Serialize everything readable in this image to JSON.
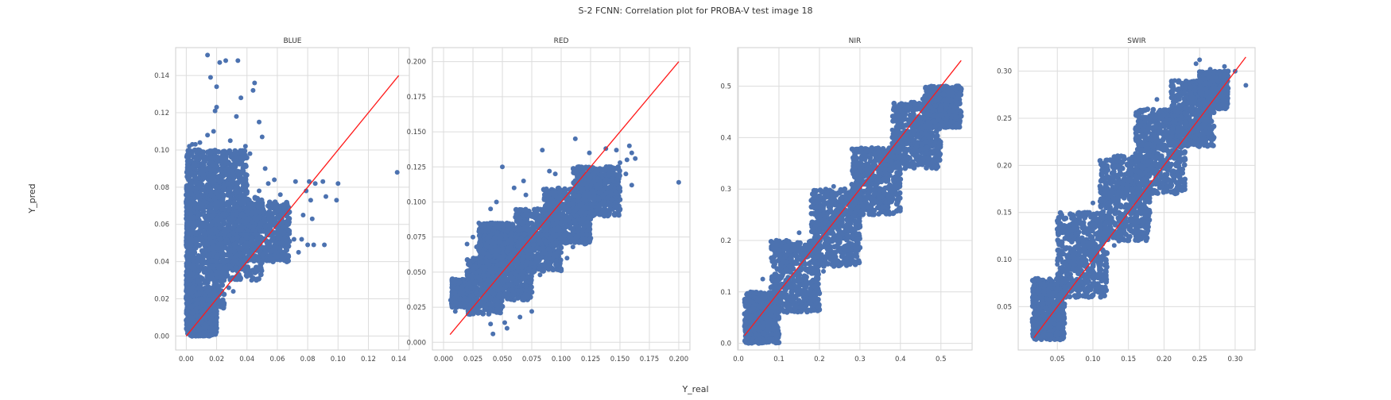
{
  "figure": {
    "title": "S-2 FCNN: Correlation plot for PROBA-V test image 18",
    "xlabel": "Y_real",
    "ylabel": "Y_pred"
  },
  "colors": {
    "points": "#4c72b0",
    "identity_line": "#ff1a1a",
    "grid": "#dcdcdc",
    "frame": "#cfcfcf"
  },
  "chart_data": [
    {
      "type": "scatter",
      "title": "BLUE",
      "xlim": [
        -0.007,
        0.147
      ],
      "ylim": [
        -0.0075,
        0.155
      ],
      "xticks": [
        0.0,
        0.02,
        0.04,
        0.06,
        0.08,
        0.1,
        0.12,
        0.14
      ],
      "xtick_labels": [
        "0.00",
        "0.02",
        "0.04",
        "0.06",
        "0.08",
        "0.10",
        "0.12",
        "0.14"
      ],
      "yticks": [
        0.0,
        0.02,
        0.04,
        0.06,
        0.08,
        0.1,
        0.12,
        0.14
      ],
      "ytick_labels": [
        "0.00",
        "0.02",
        "0.04",
        "0.06",
        "0.08",
        "0.10",
        "0.12",
        "0.14"
      ],
      "grid": true,
      "identity_line": [
        [
          0.0,
          0.0
        ],
        [
          0.14,
          0.14
        ]
      ],
      "clusters": [
        {
          "x": [
            0.0,
            0.005
          ],
          "y": [
            0.02,
            0.08
          ]
        },
        {
          "x": [
            0.002,
            0.025
          ],
          "y": [
            0.015,
            0.075
          ]
        },
        {
          "x": [
            0.015,
            0.05
          ],
          "y": [
            0.03,
            0.075
          ]
        },
        {
          "x": [
            0.03,
            0.068
          ],
          "y": [
            0.04,
            0.072
          ]
        },
        {
          "x": [
            0.0,
            0.02
          ],
          "y": [
            0.0,
            0.02
          ]
        },
        {
          "x": [
            0.0,
            0.04
          ],
          "y": [
            0.075,
            0.1
          ]
        }
      ],
      "points": [
        {
          "x": 0.014,
          "y": 0.151
        },
        {
          "x": 0.022,
          "y": 0.147
        },
        {
          "x": 0.026,
          "y": 0.148
        },
        {
          "x": 0.034,
          "y": 0.148
        },
        {
          "x": 0.016,
          "y": 0.139
        },
        {
          "x": 0.02,
          "y": 0.134
        },
        {
          "x": 0.045,
          "y": 0.136
        },
        {
          "x": 0.044,
          "y": 0.132
        },
        {
          "x": 0.036,
          "y": 0.128
        },
        {
          "x": 0.02,
          "y": 0.123
        },
        {
          "x": 0.019,
          "y": 0.121
        },
        {
          "x": 0.033,
          "y": 0.118
        },
        {
          "x": 0.048,
          "y": 0.115
        },
        {
          "x": 0.05,
          "y": 0.107
        },
        {
          "x": 0.009,
          "y": 0.104
        },
        {
          "x": 0.004,
          "y": 0.103
        },
        {
          "x": 0.006,
          "y": 0.103
        },
        {
          "x": 0.002,
          "y": 0.102
        },
        {
          "x": 0.018,
          "y": 0.11
        },
        {
          "x": 0.014,
          "y": 0.108
        },
        {
          "x": 0.029,
          "y": 0.105
        },
        {
          "x": 0.039,
          "y": 0.102
        },
        {
          "x": 0.001,
          "y": 0.092
        },
        {
          "x": 0.008,
          "y": 0.085
        },
        {
          "x": 0.042,
          "y": 0.098
        },
        {
          "x": 0.052,
          "y": 0.09
        },
        {
          "x": 0.058,
          "y": 0.084
        },
        {
          "x": 0.072,
          "y": 0.083
        },
        {
          "x": 0.079,
          "y": 0.078
        },
        {
          "x": 0.081,
          "y": 0.083
        },
        {
          "x": 0.085,
          "y": 0.082
        },
        {
          "x": 0.09,
          "y": 0.083
        },
        {
          "x": 0.1,
          "y": 0.082
        },
        {
          "x": 0.082,
          "y": 0.073
        },
        {
          "x": 0.092,
          "y": 0.075
        },
        {
          "x": 0.099,
          "y": 0.073
        },
        {
          "x": 0.077,
          "y": 0.065
        },
        {
          "x": 0.083,
          "y": 0.063
        },
        {
          "x": 0.068,
          "y": 0.055
        },
        {
          "x": 0.071,
          "y": 0.052
        },
        {
          "x": 0.076,
          "y": 0.052
        },
        {
          "x": 0.08,
          "y": 0.049
        },
        {
          "x": 0.084,
          "y": 0.049
        },
        {
          "x": 0.091,
          "y": 0.049
        },
        {
          "x": 0.074,
          "y": 0.045
        },
        {
          "x": 0.062,
          "y": 0.046
        },
        {
          "x": 0.064,
          "y": 0.044
        },
        {
          "x": 0.058,
          "y": 0.047
        },
        {
          "x": 0.139,
          "y": 0.088
        },
        {
          "x": 0.04,
          "y": 0.032
        },
        {
          "x": 0.043,
          "y": 0.03
        },
        {
          "x": 0.028,
          "y": 0.026
        },
        {
          "x": 0.031,
          "y": 0.024
        },
        {
          "x": 0.02,
          "y": 0.022
        },
        {
          "x": 0.013,
          "y": 0.01
        },
        {
          "x": 0.008,
          "y": 0.006
        },
        {
          "x": 0.01,
          "y": 0.012
        },
        {
          "x": 0.054,
          "y": 0.082
        },
        {
          "x": 0.048,
          "y": 0.078
        },
        {
          "x": 0.062,
          "y": 0.076
        }
      ]
    },
    {
      "type": "scatter",
      "title": "RED",
      "xlim": [
        -0.0095,
        0.2095
      ],
      "ylim": [
        -0.0055,
        0.21
      ],
      "xticks": [
        0.0,
        0.025,
        0.05,
        0.075,
        0.1,
        0.125,
        0.15,
        0.175,
        0.2
      ],
      "xtick_labels": [
        "0.000",
        "0.025",
        "0.050",
        "0.075",
        "0.100",
        "0.125",
        "0.150",
        "0.175",
        "0.200"
      ],
      "yticks": [
        0.0,
        0.025,
        0.05,
        0.075,
        0.1,
        0.125,
        0.15,
        0.175,
        0.2
      ],
      "ytick_labels": [
        "0.000",
        "0.025",
        "0.050",
        "0.075",
        "0.100",
        "0.125",
        "0.150",
        "0.175",
        "0.200"
      ],
      "grid": true,
      "identity_line": [
        [
          0.0055,
          0.0055
        ],
        [
          0.2,
          0.2
        ]
      ],
      "clusters": [
        {
          "x": [
            0.007,
            0.025
          ],
          "y": [
            0.025,
            0.045
          ]
        },
        {
          "x": [
            0.02,
            0.05
          ],
          "y": [
            0.02,
            0.06
          ]
        },
        {
          "x": [
            0.035,
            0.075
          ],
          "y": [
            0.03,
            0.08
          ]
        },
        {
          "x": [
            0.06,
            0.1
          ],
          "y": [
            0.05,
            0.095
          ]
        },
        {
          "x": [
            0.085,
            0.125
          ],
          "y": [
            0.07,
            0.11
          ]
        },
        {
          "x": [
            0.11,
            0.15
          ],
          "y": [
            0.09,
            0.125
          ]
        },
        {
          "x": [
            0.03,
            0.06
          ],
          "y": [
            0.05,
            0.085
          ]
        }
      ],
      "points": [
        {
          "x": 0.05,
          "y": 0.125
        },
        {
          "x": 0.084,
          "y": 0.137
        },
        {
          "x": 0.112,
          "y": 0.145
        },
        {
          "x": 0.124,
          "y": 0.135
        },
        {
          "x": 0.138,
          "y": 0.138
        },
        {
          "x": 0.147,
          "y": 0.137
        },
        {
          "x": 0.158,
          "y": 0.14
        },
        {
          "x": 0.16,
          "y": 0.135
        },
        {
          "x": 0.163,
          "y": 0.131
        },
        {
          "x": 0.156,
          "y": 0.13
        },
        {
          "x": 0.15,
          "y": 0.128
        },
        {
          "x": 0.2,
          "y": 0.114
        },
        {
          "x": 0.155,
          "y": 0.12
        },
        {
          "x": 0.16,
          "y": 0.112
        },
        {
          "x": 0.15,
          "y": 0.11
        },
        {
          "x": 0.149,
          "y": 0.104
        },
        {
          "x": 0.14,
          "y": 0.098
        },
        {
          "x": 0.13,
          "y": 0.094
        },
        {
          "x": 0.098,
          "y": 0.11
        },
        {
          "x": 0.09,
          "y": 0.122
        },
        {
          "x": 0.095,
          "y": 0.12
        },
        {
          "x": 0.07,
          "y": 0.105
        },
        {
          "x": 0.06,
          "y": 0.11
        },
        {
          "x": 0.068,
          "y": 0.115
        },
        {
          "x": 0.04,
          "y": 0.095
        },
        {
          "x": 0.045,
          "y": 0.1
        },
        {
          "x": 0.03,
          "y": 0.085
        },
        {
          "x": 0.038,
          "y": 0.082
        },
        {
          "x": 0.025,
          "y": 0.075
        },
        {
          "x": 0.02,
          "y": 0.07
        },
        {
          "x": 0.028,
          "y": 0.068
        },
        {
          "x": 0.12,
          "y": 0.07
        },
        {
          "x": 0.11,
          "y": 0.068
        },
        {
          "x": 0.1,
          "y": 0.064
        },
        {
          "x": 0.09,
          "y": 0.06
        },
        {
          "x": 0.105,
          "y": 0.06
        },
        {
          "x": 0.082,
          "y": 0.048
        },
        {
          "x": 0.07,
          "y": 0.037
        },
        {
          "x": 0.06,
          "y": 0.03
        },
        {
          "x": 0.052,
          "y": 0.014
        },
        {
          "x": 0.04,
          "y": 0.013
        },
        {
          "x": 0.042,
          "y": 0.006
        },
        {
          "x": 0.054,
          "y": 0.01
        },
        {
          "x": 0.065,
          "y": 0.018
        },
        {
          "x": 0.075,
          "y": 0.022
        },
        {
          "x": 0.008,
          "y": 0.037
        },
        {
          "x": 0.006,
          "y": 0.03
        },
        {
          "x": 0.01,
          "y": 0.022
        }
      ]
    },
    {
      "type": "scatter",
      "title": "NIR",
      "xlim": [
        -0.002,
        0.577
      ],
      "ylim": [
        -0.013,
        0.575
      ],
      "xticks": [
        0.0,
        0.1,
        0.2,
        0.3,
        0.4,
        0.5
      ],
      "xtick_labels": [
        "0.0",
        "0.1",
        "0.2",
        "0.3",
        "0.4",
        "0.5"
      ],
      "yticks": [
        0.0,
        0.1,
        0.2,
        0.3,
        0.4,
        0.5
      ],
      "ytick_labels": [
        "0.0",
        "0.1",
        "0.2",
        "0.3",
        "0.4",
        "0.5"
      ],
      "grid": true,
      "identity_line": [
        [
          0.015,
          0.015
        ],
        [
          0.55,
          0.55
        ]
      ],
      "clusters": [
        {
          "x": [
            0.015,
            0.1
          ],
          "y": [
            0.0,
            0.1
          ]
        },
        {
          "x": [
            0.08,
            0.2
          ],
          "y": [
            0.06,
            0.2
          ]
        },
        {
          "x": [
            0.18,
            0.3
          ],
          "y": [
            0.15,
            0.3
          ]
        },
        {
          "x": [
            0.28,
            0.4
          ],
          "y": [
            0.25,
            0.38
          ]
        },
        {
          "x": [
            0.38,
            0.5
          ],
          "y": [
            0.34,
            0.47
          ]
        },
        {
          "x": [
            0.46,
            0.55
          ],
          "y": [
            0.42,
            0.5
          ]
        }
      ],
      "points": [
        {
          "x": 0.02,
          "y": 0.095
        },
        {
          "x": 0.03,
          "y": 0.1
        },
        {
          "x": 0.06,
          "y": 0.125
        },
        {
          "x": 0.1,
          "y": 0.17
        },
        {
          "x": 0.15,
          "y": 0.215
        },
        {
          "x": 0.2,
          "y": 0.275
        },
        {
          "x": 0.235,
          "y": 0.305
        },
        {
          "x": 0.3,
          "y": 0.34
        },
        {
          "x": 0.38,
          "y": 0.415
        },
        {
          "x": 0.41,
          "y": 0.44
        },
        {
          "x": 0.455,
          "y": 0.475
        },
        {
          "x": 0.495,
          "y": 0.49
        },
        {
          "x": 0.54,
          "y": 0.5
        },
        {
          "x": 0.545,
          "y": 0.495
        },
        {
          "x": 0.5,
          "y": 0.43
        },
        {
          "x": 0.47,
          "y": 0.4
        },
        {
          "x": 0.44,
          "y": 0.375
        },
        {
          "x": 0.42,
          "y": 0.35
        },
        {
          "x": 0.4,
          "y": 0.33
        },
        {
          "x": 0.36,
          "y": 0.29
        },
        {
          "x": 0.33,
          "y": 0.25
        },
        {
          "x": 0.3,
          "y": 0.23
        },
        {
          "x": 0.25,
          "y": 0.18
        },
        {
          "x": 0.21,
          "y": 0.14
        },
        {
          "x": 0.19,
          "y": 0.12
        },
        {
          "x": 0.16,
          "y": 0.09
        },
        {
          "x": 0.12,
          "y": 0.06
        },
        {
          "x": 0.1,
          "y": 0.05
        },
        {
          "x": 0.06,
          "y": 0.03
        },
        {
          "x": 0.035,
          "y": 0.01
        },
        {
          "x": 0.025,
          "y": 0.0
        },
        {
          "x": 0.05,
          "y": 0.06
        },
        {
          "x": 0.08,
          "y": 0.07
        }
      ]
    },
    {
      "type": "scatter",
      "title": "SWIR",
      "xlim": [
        -0.005,
        0.328
      ],
      "ylim": [
        0.004,
        0.325
      ],
      "xticks": [
        0.05,
        0.1,
        0.15,
        0.2,
        0.25,
        0.3
      ],
      "xtick_labels": [
        "0.05",
        "0.10",
        "0.15",
        "0.20",
        "0.25",
        "0.30"
      ],
      "yticks": [
        0.05,
        0.1,
        0.15,
        0.2,
        0.25,
        0.3
      ],
      "ytick_labels": [
        "0.05",
        "0.10",
        "0.15",
        "0.20",
        "0.25",
        "0.30"
      ],
      "grid": true,
      "identity_line": [
        [
          0.017,
          0.017
        ],
        [
          0.315,
          0.315
        ]
      ],
      "clusters": [
        {
          "x": [
            0.015,
            0.06
          ],
          "y": [
            0.015,
            0.08
          ]
        },
        {
          "x": [
            0.05,
            0.12
          ],
          "y": [
            0.06,
            0.15
          ]
        },
        {
          "x": [
            0.11,
            0.18
          ],
          "y": [
            0.12,
            0.21
          ]
        },
        {
          "x": [
            0.16,
            0.23
          ],
          "y": [
            0.17,
            0.26
          ]
        },
        {
          "x": [
            0.21,
            0.27
          ],
          "y": [
            0.22,
            0.29
          ]
        },
        {
          "x": [
            0.25,
            0.29
          ],
          "y": [
            0.26,
            0.3
          ]
        }
      ],
      "points": [
        {
          "x": 0.02,
          "y": 0.055
        },
        {
          "x": 0.025,
          "y": 0.06
        },
        {
          "x": 0.05,
          "y": 0.095
        },
        {
          "x": 0.07,
          "y": 0.125
        },
        {
          "x": 0.1,
          "y": 0.16
        },
        {
          "x": 0.135,
          "y": 0.2
        },
        {
          "x": 0.16,
          "y": 0.24
        },
        {
          "x": 0.19,
          "y": 0.27
        },
        {
          "x": 0.215,
          "y": 0.29
        },
        {
          "x": 0.245,
          "y": 0.308
        },
        {
          "x": 0.25,
          "y": 0.312
        },
        {
          "x": 0.265,
          "y": 0.302
        },
        {
          "x": 0.285,
          "y": 0.305
        },
        {
          "x": 0.3,
          "y": 0.3
        },
        {
          "x": 0.29,
          "y": 0.295
        },
        {
          "x": 0.315,
          "y": 0.285
        },
        {
          "x": 0.275,
          "y": 0.27
        },
        {
          "x": 0.27,
          "y": 0.265
        },
        {
          "x": 0.26,
          "y": 0.25
        },
        {
          "x": 0.25,
          "y": 0.24
        },
        {
          "x": 0.24,
          "y": 0.225
        },
        {
          "x": 0.22,
          "y": 0.205
        },
        {
          "x": 0.2,
          "y": 0.185
        },
        {
          "x": 0.18,
          "y": 0.165
        },
        {
          "x": 0.16,
          "y": 0.145
        },
        {
          "x": 0.13,
          "y": 0.115
        },
        {
          "x": 0.1,
          "y": 0.088
        },
        {
          "x": 0.08,
          "y": 0.072
        },
        {
          "x": 0.06,
          "y": 0.05
        },
        {
          "x": 0.035,
          "y": 0.03
        },
        {
          "x": 0.02,
          "y": 0.015
        },
        {
          "x": 0.028,
          "y": 0.018
        }
      ]
    }
  ]
}
